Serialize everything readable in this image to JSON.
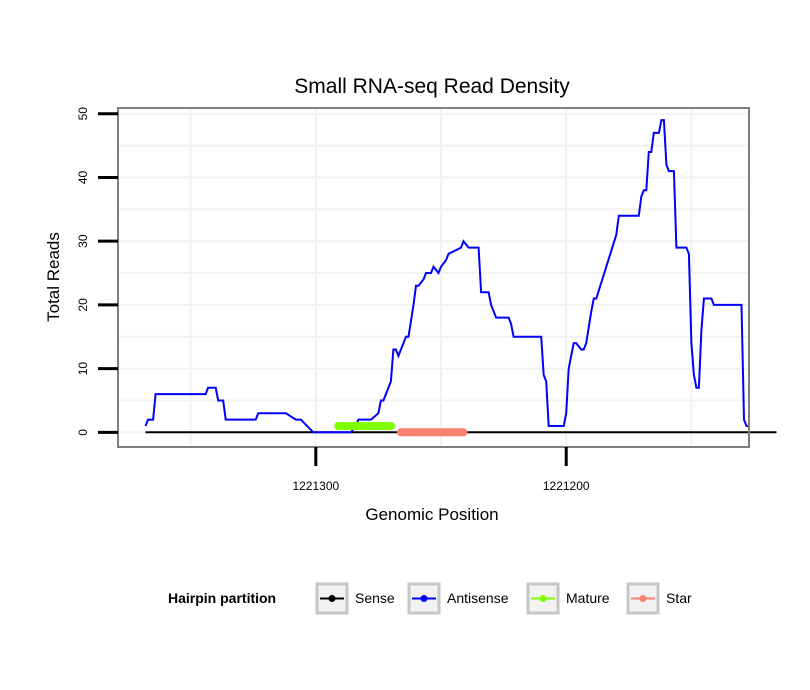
{
  "chart_data": {
    "type": "line",
    "title": "Small RNA-seq Read Density",
    "xlabel": "Genomic Position",
    "ylabel": "Total Reads",
    "x_reversed": true,
    "xlim": [
      1221379,
      1221127
    ],
    "ylim": [
      -2.3,
      50.9
    ],
    "x_ticks": [
      1221300,
      1221200
    ],
    "y_ticks": [
      0,
      10,
      20,
      30,
      40,
      50
    ],
    "grid": true,
    "legend": {
      "title": "Hairpin partition",
      "placement": "bottom",
      "entries": [
        {
          "name": "Sense",
          "color": "#000000"
        },
        {
          "name": "Antisense",
          "color": "#0000ff"
        },
        {
          "name": "Mature",
          "color": "#7fff00"
        },
        {
          "name": "Star",
          "color": "#fa8072"
        }
      ]
    },
    "series": [
      {
        "name": "Sense",
        "color": "#000000",
        "x": [
          1221368,
          1221116
        ],
        "y": [
          0,
          0
        ]
      },
      {
        "name": "Antisense",
        "color": "#0000ff",
        "x": [
          1221368,
          1221367,
          1221366,
          1221365,
          1221364,
          1221363,
          1221349,
          1221348,
          1221344,
          1221343,
          1221341,
          1221340,
          1221339,
          1221337,
          1221336,
          1221324,
          1221323,
          1221312,
          1221308,
          1221306,
          1221301,
          1221299,
          1221289,
          1221287,
          1221286,
          1221284,
          1221283,
          1221282,
          1221280,
          1221279,
          1221278,
          1221275,
          1221274,
          1221273,
          1221270,
          1221269,
          1221268,
          1221267,
          1221265,
          1221264,
          1221263,
          1221261,
          1221260,
          1221259,
          1221257,
          1221256,
          1221254,
          1221253,
          1221251,
          1221250,
          1221248,
          1221247,
          1221242,
          1221241,
          1221239,
          1221238,
          1221236,
          1221235,
          1221234,
          1221232,
          1221231,
          1221230,
          1221228,
          1221227,
          1221223,
          1221222,
          1221221,
          1221210,
          1221209,
          1221208,
          1221207,
          1221205,
          1221204,
          1221203,
          1221202,
          1221201,
          1221200,
          1221199,
          1221197,
          1221196,
          1221194,
          1221193,
          1221192,
          1221190,
          1221189,
          1221188,
          1221180,
          1221179,
          1221178,
          1221177,
          1221176,
          1221175,
          1221174,
          1221173,
          1221172,
          1221171,
          1221170,
          1221169,
          1221168,
          1221167,
          1221166,
          1221165,
          1221164,
          1221163,
          1221162,
          1221161,
          1221160,
          1221159,
          1221158,
          1221157,
          1221156,
          1221155,
          1221154,
          1221153,
          1221152,
          1221151,
          1221150,
          1221149,
          1221148,
          1221147,
          1221146,
          1221145,
          1221144,
          1221143,
          1221142,
          1221141,
          1221140,
          1221139,
          1221138,
          1221137,
          1221136,
          1221135,
          1221134,
          1221133,
          1221132,
          1221131,
          1221130,
          1221129,
          1221128,
          1221127
        ],
        "y": [
          1,
          2,
          2,
          2,
          6,
          6,
          6,
          6,
          6,
          7,
          7,
          7,
          5,
          5,
          2,
          2,
          3,
          3,
          2,
          2,
          0,
          0,
          0,
          0,
          0,
          1,
          2,
          2,
          2,
          2,
          2,
          3,
          5,
          5,
          8,
          13,
          13,
          12,
          14,
          15,
          15,
          20,
          23,
          23,
          24,
          25,
          25,
          26,
          25,
          26,
          27,
          28,
          29,
          30,
          29,
          29,
          29,
          29,
          22,
          22,
          22,
          20,
          18,
          18,
          18,
          17,
          15,
          15,
          9,
          8,
          1,
          1,
          1,
          1,
          1,
          1,
          3,
          10,
          14,
          14,
          13,
          13,
          14,
          19,
          21,
          21,
          31,
          34,
          34,
          34,
          34,
          34,
          34,
          34,
          34,
          34,
          37,
          38,
          38,
          44,
          44,
          47,
          47,
          47,
          49,
          49,
          42,
          41,
          41,
          41,
          29,
          29,
          29,
          29,
          29,
          28,
          14,
          9,
          7,
          7,
          16,
          21,
          21,
          21,
          21,
          20,
          20,
          20,
          20,
          20,
          20,
          20,
          20,
          20,
          20,
          20,
          20,
          2,
          1,
          1
        ]
      },
      {
        "name": "Mature",
        "color": "#7fff00",
        "x": [
          1221291,
          1221270
        ],
        "y": [
          1,
          1
        ]
      },
      {
        "name": "Star",
        "color": "#fa8072",
        "x": [
          1221266,
          1221241
        ],
        "y": [
          0,
          0
        ]
      }
    ]
  }
}
